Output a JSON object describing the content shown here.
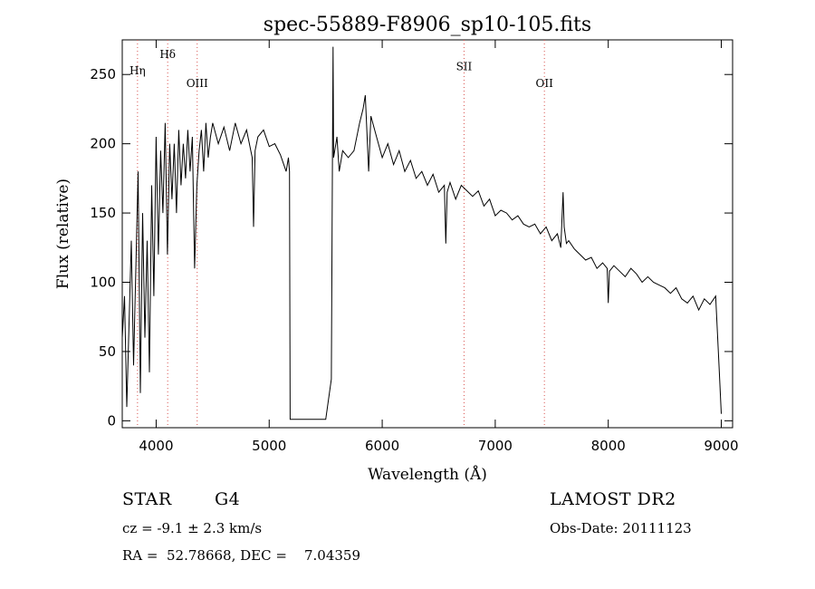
{
  "chart_data": {
    "type": "line",
    "title": "spec-55889-F8906_sp10-105.fits",
    "xlabel": "Wavelength (Å)",
    "ylabel": "Flux (relative)",
    "xlim": [
      3700,
      9100
    ],
    "ylim": [
      -5,
      275
    ],
    "xticks": [
      4000,
      5000,
      6000,
      7000,
      8000,
      9000
    ],
    "yticks": [
      0,
      50,
      100,
      150,
      200,
      250
    ],
    "grid": false,
    "series": [
      {
        "x": [
          3700,
          3720,
          3740,
          3760,
          3780,
          3800,
          3820,
          3840,
          3860,
          3880,
          3900,
          3920,
          3940,
          3960,
          3980,
          4000,
          4020,
          4040,
          4060,
          4080,
          4100,
          4120,
          4140,
          4160,
          4180,
          4200,
          4220,
          4240,
          4260,
          4280,
          4300,
          4320,
          4340,
          4360,
          4380,
          4400,
          4420,
          4440,
          4460,
          4480,
          4500,
          4550,
          4600,
          4650,
          4700,
          4750,
          4800,
          4850,
          4862,
          4875,
          4900,
          4950,
          5000,
          5050,
          5100,
          5150,
          5170,
          5180,
          5185,
          5200,
          5300,
          5400,
          5500,
          5550,
          5560,
          5565,
          5570,
          5590,
          5600,
          5620,
          5650,
          5700,
          5750,
          5800,
          5830,
          5850,
          5880,
          5900,
          5950,
          6000,
          6050,
          6100,
          6150,
          6200,
          6250,
          6300,
          6350,
          6400,
          6450,
          6500,
          6550,
          6563,
          6575,
          6600,
          6650,
          6700,
          6750,
          6800,
          6850,
          6900,
          6950,
          7000,
          7050,
          7100,
          7150,
          7200,
          7250,
          7300,
          7350,
          7400,
          7450,
          7500,
          7550,
          7580,
          7600,
          7610,
          7630,
          7650,
          7700,
          7750,
          7800,
          7850,
          7900,
          7950,
          7990,
          8000,
          8010,
          8050,
          8100,
          8150,
          8200,
          8250,
          8300,
          8350,
          8400,
          8450,
          8500,
          8550,
          8600,
          8650,
          8700,
          8750,
          8800,
          8850,
          8900,
          8950,
          8980,
          9000
        ],
        "y": [
          60,
          90,
          10,
          70,
          130,
          40,
          110,
          180,
          20,
          150,
          60,
          130,
          35,
          170,
          90,
          205,
          120,
          195,
          150,
          215,
          120,
          200,
          160,
          200,
          150,
          210,
          170,
          200,
          175,
          210,
          180,
          205,
          110,
          170,
          195,
          210,
          180,
          215,
          190,
          205,
          215,
          200,
          212,
          195,
          215,
          200,
          210,
          190,
          140,
          195,
          205,
          210,
          198,
          200,
          192,
          180,
          190,
          180,
          1,
          1,
          1,
          1,
          1,
          30,
          200,
          270,
          190,
          200,
          205,
          180,
          195,
          190,
          195,
          215,
          225,
          235,
          180,
          220,
          205,
          190,
          200,
          185,
          195,
          180,
          188,
          175,
          180,
          170,
          178,
          165,
          170,
          128,
          165,
          172,
          160,
          170,
          166,
          162,
          166,
          155,
          160,
          148,
          152,
          150,
          145,
          148,
          142,
          140,
          142,
          135,
          140,
          130,
          135,
          125,
          165,
          140,
          128,
          130,
          124,
          120,
          116,
          118,
          110,
          114,
          110,
          85,
          108,
          112,
          108,
          104,
          110,
          106,
          100,
          104,
          100,
          98,
          96,
          92,
          96,
          88,
          85,
          90,
          80,
          88,
          84,
          90,
          40,
          5
        ]
      }
    ],
    "annotations": [
      {
        "label": "Hη",
        "x": 3835,
        "level": 250
      },
      {
        "label": "Hδ",
        "x": 4102,
        "level": 262
      },
      {
        "label": "OIII",
        "x": 4363,
        "level": 241
      },
      {
        "label": "SII",
        "x": 6724,
        "level": 253
      },
      {
        "label": "OII",
        "x": 7435,
        "level": 241
      }
    ],
    "line_color": "#000000",
    "annotation_color": "#d9534f"
  },
  "info": {
    "object_class": "STAR",
    "subclass": "G4",
    "survey": "LAMOST DR2",
    "redshift": "cz = -9.1 ± 2.3 km/s",
    "obs_date": "Obs-Date: 20111123",
    "coords": "RA =  52.78668, DEC =    7.04359"
  }
}
